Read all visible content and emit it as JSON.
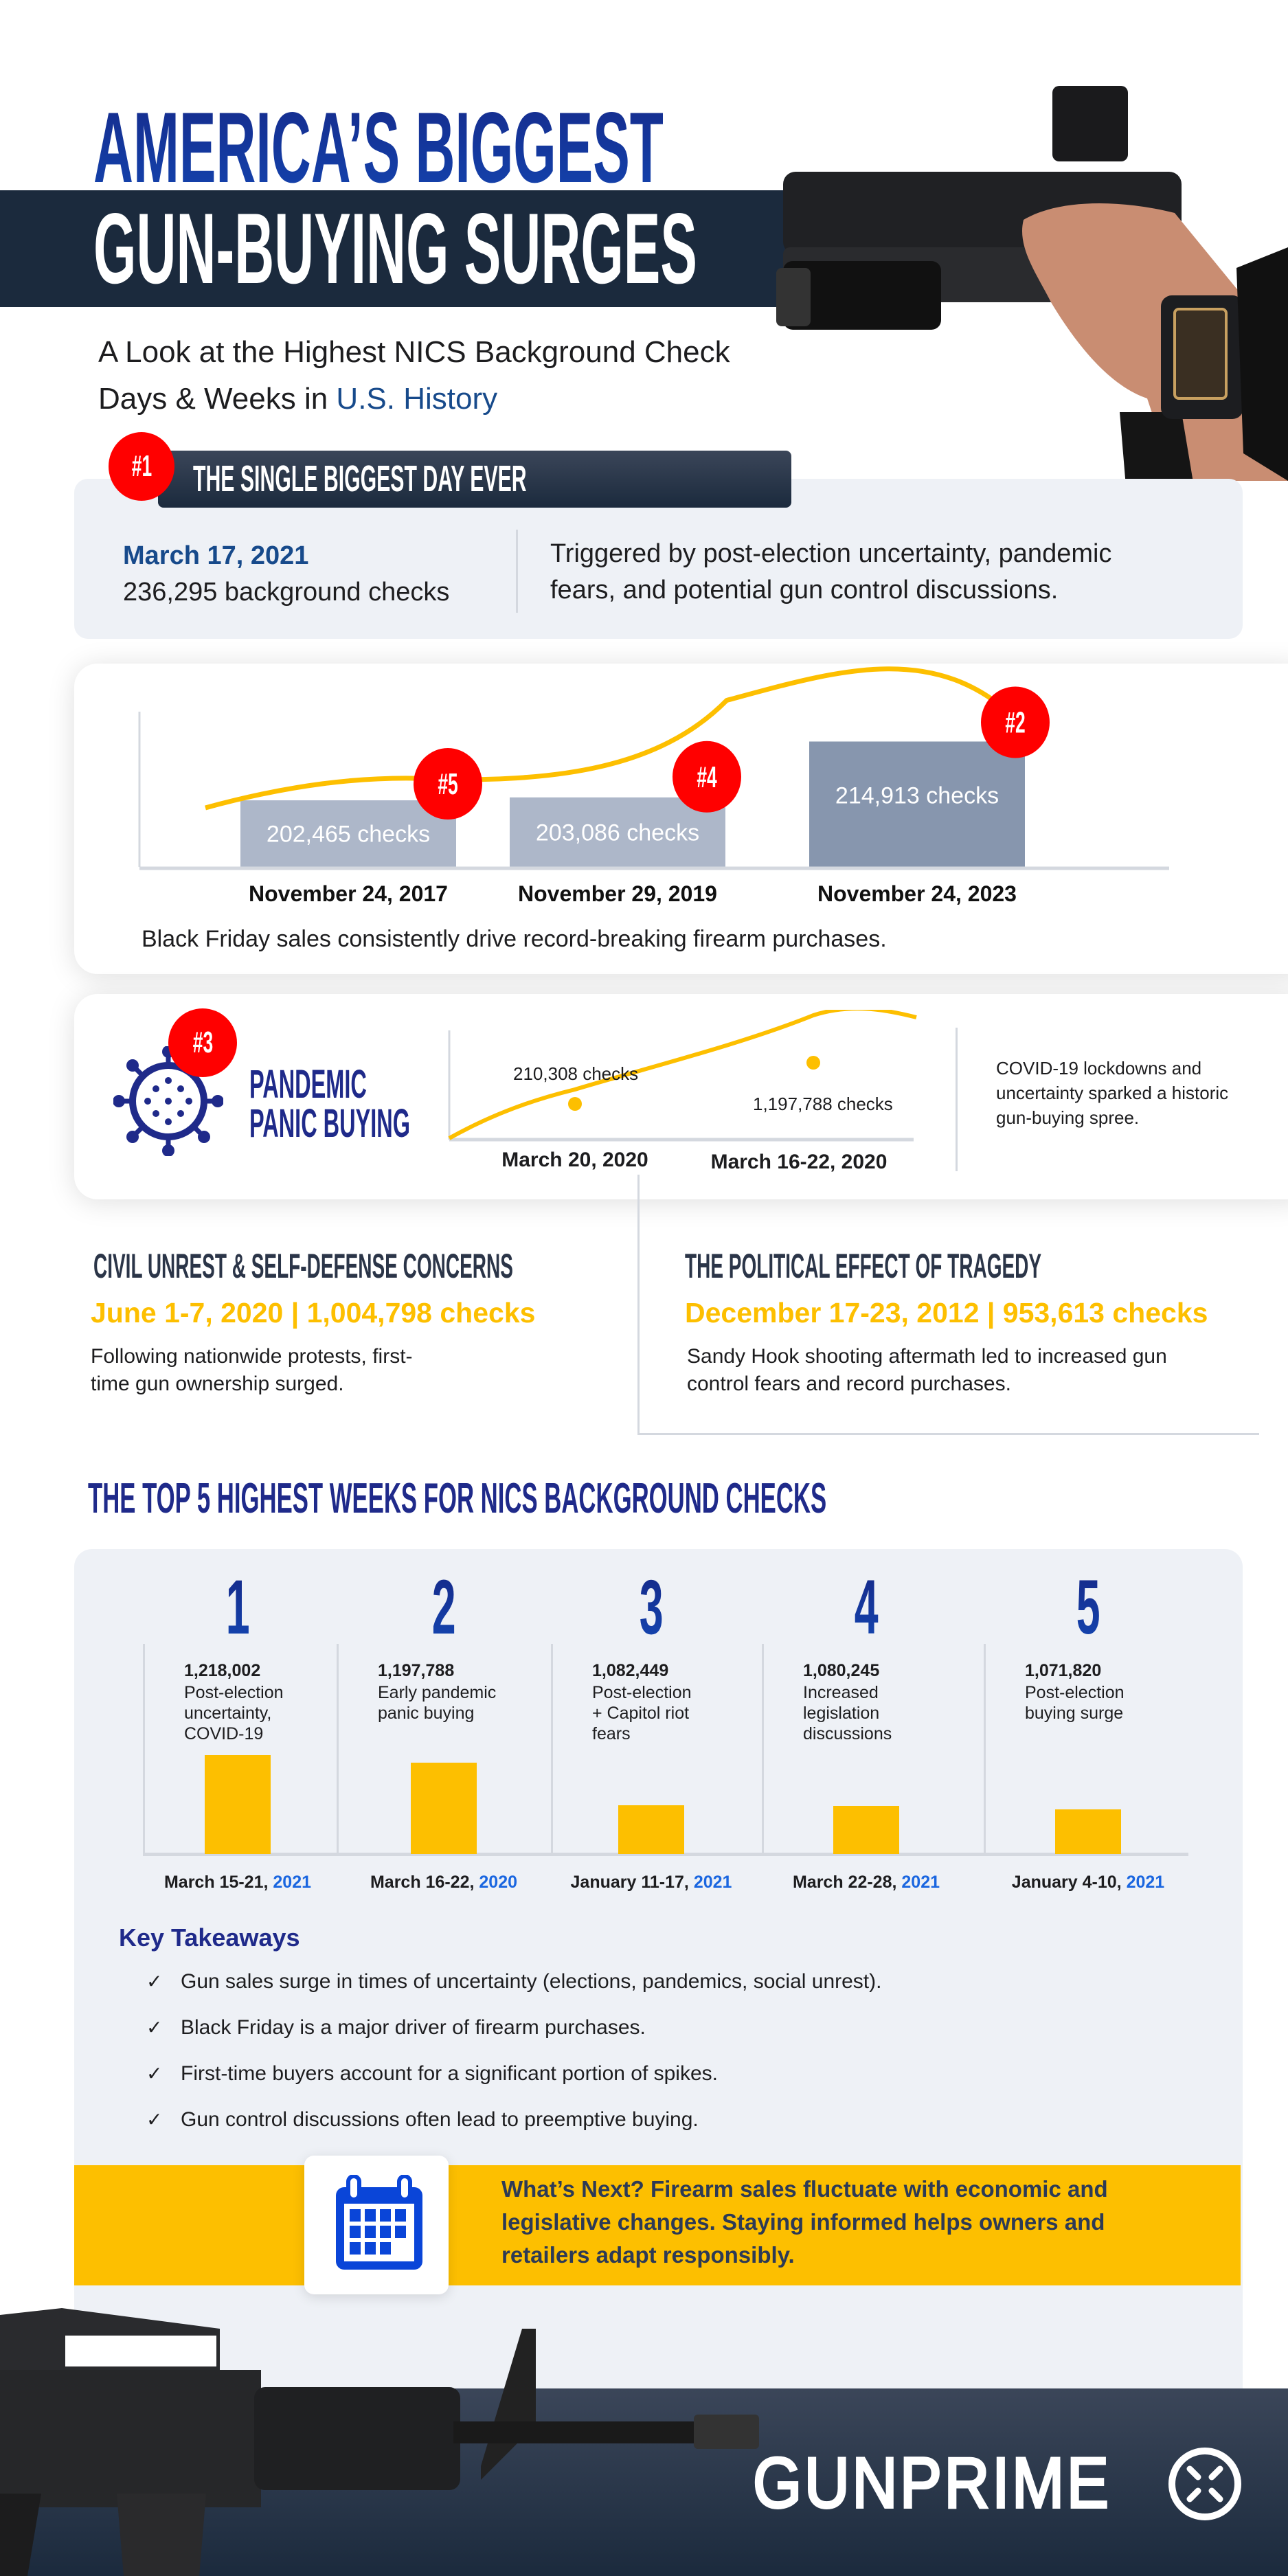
{
  "header": {
    "title_line1": "AMERICA’S BIGGEST",
    "title_line2": "GUN-BUYING SURGES",
    "subtitle_line1": "A Look at the Highest NICS Background Check",
    "subtitle_line2_prefix": "Days & Weeks in ",
    "subtitle_line2_highlight": "U.S. History"
  },
  "biggest_day": {
    "rank": "#1",
    "heading": "THE SINGLE BIGGEST DAY EVER",
    "date": "March 17, 2021",
    "checks": "236,295 background checks",
    "description_line1": "Triggered by post-election uncertainty, pandemic",
    "description_line2": "fears, and potential gun control discussions."
  },
  "black_friday": {
    "caption": "Black Friday sales consistently drive record-breaking firearm purchases."
  },
  "pandemic": {
    "rank": "#3",
    "title_line1": "PANDEMIC",
    "title_line2": "PANIC BUYING",
    "description_line1": "COVID-19 lockdowns and",
    "description_line2": "uncertainty sparked a historic",
    "description_line3": "gun-buying spree.",
    "points": [
      {
        "label": "210,308 checks",
        "date": "March 20, 2020"
      },
      {
        "label": "1,197,788 checks",
        "date": "March 16-22, 2020"
      }
    ]
  },
  "civil_unrest": {
    "heading": "CIVIL UNREST & SELF-DEFENSE CONCERNS",
    "highlight": "June 1-7, 2020 | 1,004,798 checks",
    "description_line1": "Following nationwide protests, first-",
    "description_line2": "time gun ownership surged."
  },
  "political": {
    "heading": "THE POLITICAL EFFECT OF TRAGEDY",
    "highlight": "December 17-23, 2012 | 953,613 checks",
    "description_line1": "Sandy Hook shooting aftermath led to increased gun",
    "description_line2": "control fears and record purchases."
  },
  "top5": {
    "heading": "THE TOP 5 HIGHEST WEEKS FOR NICS BACKGROUND CHECKS"
  },
  "chart_data": [
    {
      "type": "bar",
      "categories": [
        "November 24, 2017",
        "November 29, 2019",
        "November 24, 2023"
      ],
      "values": [
        202465,
        203086,
        214913
      ],
      "data_labels": [
        "202,465  checks",
        "203,086 checks",
        "214,913 checks"
      ],
      "ranks": [
        "#5",
        "#4",
        "#2"
      ],
      "trend_line": true,
      "colors": [
        "#adb7c9",
        "#adb7c9",
        "#8796ae"
      ],
      "line_color": "#fdbf00",
      "ylim": [
        200000,
        216000
      ],
      "grid": false
    },
    {
      "type": "bar",
      "ranks": [
        "1",
        "2",
        "3",
        "4",
        "5"
      ],
      "values": [
        1218002,
        1197788,
        1082449,
        1080245,
        1071820
      ],
      "value_labels": [
        "1,218,002",
        "1,197,788",
        "1,082,449",
        "1,080,245",
        "1,071,820"
      ],
      "descriptions": [
        [
          "Post-election",
          "uncertainty,",
          "COVID-19"
        ],
        [
          "Early pandemic",
          "panic buying"
        ],
        [
          "Post-election",
          "+ Capitol riot",
          "fears"
        ],
        [
          "Increased",
          "legislation",
          "discussions"
        ],
        [
          "Post-election",
          "buying surge"
        ]
      ],
      "categories": [
        {
          "prefix": "March 15-21, ",
          "year": "2021"
        },
        {
          "prefix": "March 16-22, ",
          "year": "2020"
        },
        {
          "prefix": "January 11-17, ",
          "year": "2021"
        },
        {
          "prefix": "March 22-28, ",
          "year": "2021"
        },
        {
          "prefix": "January 4-10, ",
          "year": "2021"
        }
      ],
      "color": "#fdbf00",
      "ylim": [
        950000,
        1230000
      ],
      "grid": false
    }
  ],
  "takeaways": {
    "heading": "Key Takeaways",
    "items": [
      "Gun sales surge in times of uncertainty (elections, pandemics, social unrest).",
      "Black Friday is a major driver of firearm purchases.",
      "First-time buyers account for a significant portion of spikes.",
      "Gun control discussions often lead to preemptive buying."
    ],
    "check_icon": "✓"
  },
  "whats_next": {
    "line1": "What’s Next? Firearm sales fluctuate with economic and",
    "line2": "legislative changes. Staying informed helps owners and",
    "line3": "retailers adapt responsibly."
  },
  "footer": {
    "logo_text": "GUNPRIME"
  },
  "colors": {
    "navy": "#1a2a86",
    "dark": "#1b2a3d",
    "red": "#ff0000",
    "yellow": "#fdbf00",
    "blue": "#1a66e0",
    "panel": "#eef1f6"
  }
}
